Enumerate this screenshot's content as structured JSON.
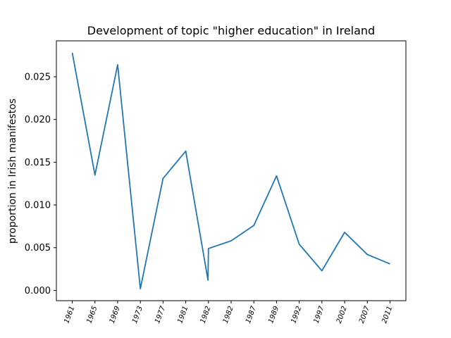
{
  "chart_data": {
    "type": "line",
    "title": "Development of topic \"higher education\" in Ireland",
    "xlabel": "",
    "ylabel": "proportion in Irish manifestos",
    "categories": [
      "1961",
      "1965",
      "1969",
      "1973",
      "1977",
      "1981",
      "1982",
      "1982",
      "1987",
      "1989",
      "1992",
      "1997",
      "2002",
      "2007",
      "2011"
    ],
    "series": [
      {
        "x": [
          0,
          1,
          2,
          3,
          4,
          5,
          5.98,
          6.0,
          7,
          8,
          9,
          10,
          11,
          12,
          13,
          14
        ],
        "values": [
          0.0278,
          0.0135,
          0.0264,
          0.0002,
          0.0131,
          0.0163,
          0.0012,
          0.0049,
          0.0058,
          0.0076,
          0.0134,
          0.0054,
          0.0023,
          0.0068,
          0.0042,
          0.0031
        ],
        "color": "#1f77b4"
      }
    ],
    "yticks": [
      "0.000",
      "0.005",
      "0.010",
      "0.015",
      "0.020",
      "0.025"
    ],
    "ytick_values": [
      0,
      0.005,
      0.01,
      0.015,
      0.02,
      0.025
    ],
    "ylim": [
      -0.0012,
      0.0292
    ],
    "xlim": [
      -0.7,
      14.7
    ],
    "grid": false,
    "legend": "none"
  }
}
